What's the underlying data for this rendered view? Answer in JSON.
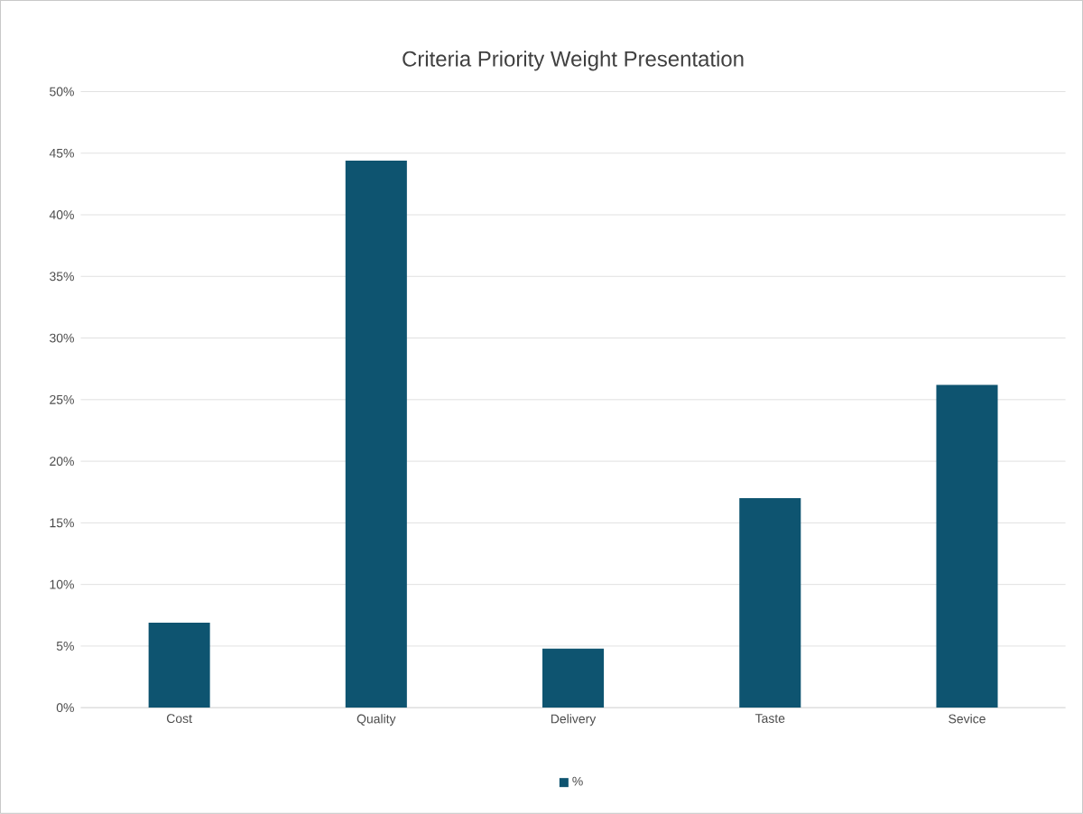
{
  "chart_data": {
    "type": "bar",
    "title": "Criteria Priority Weight Presentation",
    "categories": [
      "Cost",
      "Quality",
      "Delivery",
      "Taste",
      "Sevice"
    ],
    "series": [
      {
        "name": "%",
        "color": "#0e5470",
        "values": [
          6.9,
          44.4,
          4.8,
          17.0,
          26.2
        ]
      }
    ],
    "ylim": [
      0,
      50
    ],
    "yticks": [
      {
        "value": 0,
        "label": "0%"
      },
      {
        "value": 5,
        "label": "5%"
      },
      {
        "value": 10,
        "label": "10%"
      },
      {
        "value": 15,
        "label": "15%"
      },
      {
        "value": 20,
        "label": "20%"
      },
      {
        "value": 25,
        "label": "25%"
      },
      {
        "value": 30,
        "label": "30%"
      },
      {
        "value": 35,
        "label": "35%"
      },
      {
        "value": 40,
        "label": "40%"
      },
      {
        "value": 45,
        "label": "45%"
      },
      {
        "value": 50,
        "label": "50%"
      }
    ],
    "grid": "y",
    "legend": "bottom"
  }
}
